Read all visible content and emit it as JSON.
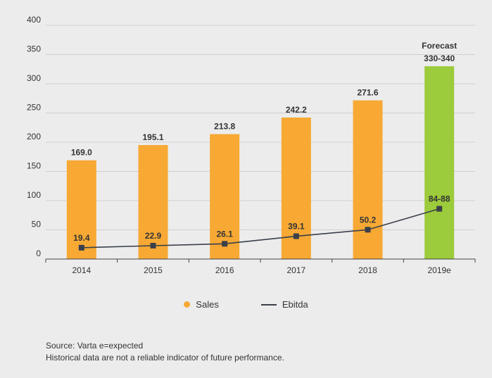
{
  "colors": {
    "sales": "#f7a934",
    "forecast": "#9ccb3b",
    "ebitda": "#3a3f4a",
    "grid": "#cfcfcf",
    "axis": "#444444"
  },
  "chart_data": {
    "type": "bar",
    "categories": [
      "2014",
      "2015",
      "2016",
      "2017",
      "2018",
      "2019e"
    ],
    "ylim": [
      0,
      400
    ],
    "yticks": [
      0,
      50,
      100,
      150,
      200,
      250,
      300,
      350,
      400
    ],
    "series": [
      {
        "name": "Sales",
        "kind": "bar",
        "values": [
          169.0,
          195.1,
          213.8,
          242.2,
          271.6,
          330
        ],
        "labels": [
          "169.0",
          "195.1",
          "213.8",
          "242.2",
          "271.6",
          "330-340"
        ]
      },
      {
        "name": "Ebitda",
        "kind": "line",
        "values": [
          19.4,
          22.9,
          26.1,
          39.1,
          50.2,
          86
        ],
        "labels": [
          "19.4",
          "22.9",
          "26.1",
          "39.1",
          "50.2",
          "84-88"
        ]
      }
    ],
    "forecast_index": 5,
    "forecast_label": "Forecast",
    "legend": [
      "Sales",
      "Ebitda"
    ]
  },
  "footnote": {
    "line1": "Source: Varta  e=expected",
    "line2": "Historical data are not a reliable indicator of future performance."
  }
}
